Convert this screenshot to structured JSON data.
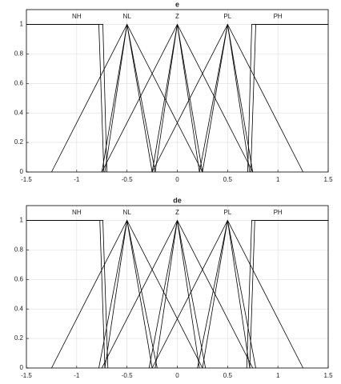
{
  "chart_data": [
    {
      "type": "line",
      "title": "e",
      "xlim": [
        -1.5,
        1.5
      ],
      "ylim": [
        0,
        1.1
      ],
      "xticks": [
        -1.5,
        -1,
        -0.5,
        0,
        0.5,
        1,
        1.5
      ],
      "yticks": [
        0,
        0.2,
        0.4,
        0.6,
        0.8,
        1
      ],
      "grid": true,
      "color": "#000000",
      "annotations": [
        {
          "text": "NH",
          "x": -1
        },
        {
          "text": "NL",
          "x": -0.5
        },
        {
          "text": "Z",
          "x": 0
        },
        {
          "text": "PL",
          "x": 0.5
        },
        {
          "text": "PH",
          "x": 1
        }
      ],
      "series": [
        {
          "x": [
            -1.5,
            -0.78,
            -0.73
          ],
          "values": [
            1,
            1,
            0
          ]
        },
        {
          "x": [
            -1.5,
            -0.74,
            -0.7
          ],
          "values": [
            1,
            1,
            0
          ]
        },
        {
          "x": [
            -1.25,
            -0.5,
            0.25
          ],
          "values": [
            0,
            1,
            0
          ]
        },
        {
          "x": [
            -0.75,
            -0.5,
            -0.25
          ],
          "values": [
            0,
            1,
            0
          ]
        },
        {
          "x": [
            -0.72,
            -0.5,
            -0.22
          ],
          "values": [
            0,
            1,
            0
          ]
        },
        {
          "x": [
            -0.75,
            0,
            0.75
          ],
          "values": [
            0,
            1,
            0
          ]
        },
        {
          "x": [
            -0.25,
            0,
            0.25
          ],
          "values": [
            0,
            1,
            0
          ]
        },
        {
          "x": [
            -0.22,
            0,
            0.22
          ],
          "values": [
            0,
            1,
            0
          ]
        },
        {
          "x": [
            -0.25,
            0.5,
            1.25
          ],
          "values": [
            0,
            1,
            0
          ]
        },
        {
          "x": [
            0.25,
            0.5,
            0.75
          ],
          "values": [
            0,
            1,
            0
          ]
        },
        {
          "x": [
            0.22,
            0.5,
            0.72
          ],
          "values": [
            0,
            1,
            0
          ]
        },
        {
          "x": [
            0.73,
            0.78,
            1.5
          ],
          "values": [
            0,
            1,
            1
          ]
        },
        {
          "x": [
            0.7,
            0.74,
            1.5
          ],
          "values": [
            0,
            1,
            1
          ]
        }
      ]
    },
    {
      "type": "line",
      "title": "de",
      "xlim": [
        -1.5,
        1.5
      ],
      "ylim": [
        0,
        1.1
      ],
      "xticks": [
        -1.5,
        -1,
        -0.5,
        0,
        0.5,
        1,
        1.5
      ],
      "yticks": [
        0,
        0.2,
        0.4,
        0.6,
        0.8,
        1
      ],
      "grid": true,
      "color": "#000000",
      "annotations": [
        {
          "text": "NH",
          "x": -1
        },
        {
          "text": "NL",
          "x": -0.5
        },
        {
          "text": "Z",
          "x": 0
        },
        {
          "text": "PL",
          "x": 0.5
        },
        {
          "text": "PH",
          "x": 1
        }
      ],
      "series": [
        {
          "x": [
            -1.5,
            -0.77,
            -0.72
          ],
          "values": [
            1,
            1,
            0
          ]
        },
        {
          "x": [
            -1.5,
            -0.74,
            -0.69
          ],
          "values": [
            1,
            1,
            0
          ]
        },
        {
          "x": [
            -1.25,
            -0.5,
            0.25
          ],
          "values": [
            0,
            1,
            0
          ]
        },
        {
          "x": [
            -0.78,
            -0.5,
            -0.25
          ],
          "values": [
            0,
            1,
            0
          ]
        },
        {
          "x": [
            -0.72,
            -0.5,
            -0.2
          ],
          "values": [
            0,
            1,
            0
          ]
        },
        {
          "x": [
            -0.75,
            0,
            0.75
          ],
          "values": [
            0,
            1,
            0
          ]
        },
        {
          "x": [
            -0.28,
            0,
            0.28
          ],
          "values": [
            0,
            1,
            0
          ]
        },
        {
          "x": [
            -0.22,
            0,
            0.22
          ],
          "values": [
            0,
            1,
            0
          ]
        },
        {
          "x": [
            -0.25,
            0.5,
            1.25
          ],
          "values": [
            0,
            1,
            0
          ]
        },
        {
          "x": [
            0.25,
            0.5,
            0.78
          ],
          "values": [
            0,
            1,
            0
          ]
        },
        {
          "x": [
            0.2,
            0.5,
            0.72
          ],
          "values": [
            0,
            1,
            0
          ]
        },
        {
          "x": [
            0.72,
            0.77,
            1.5
          ],
          "values": [
            0,
            1,
            1
          ]
        },
        {
          "x": [
            0.69,
            0.74,
            1.5
          ],
          "values": [
            0,
            1,
            1
          ]
        }
      ]
    }
  ]
}
